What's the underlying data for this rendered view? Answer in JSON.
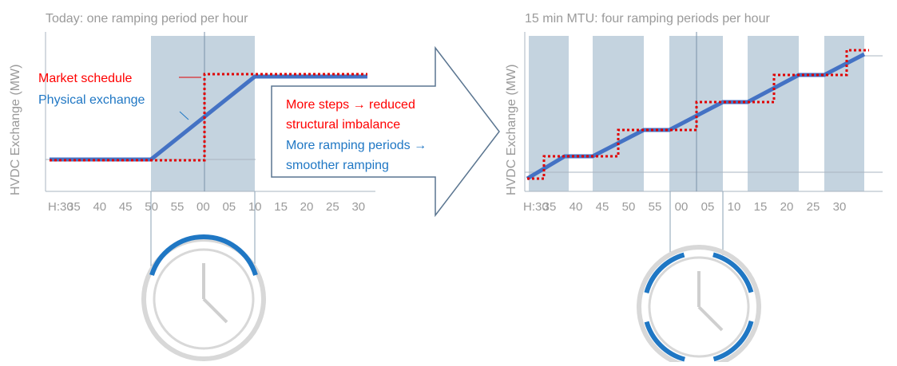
{
  "left": {
    "title": "Today: one ramping period per hour",
    "y_label": "HVDC Exchange (MW)",
    "x_ticks": [
      "H:30",
      "35",
      "40",
      "45",
      "50",
      "55",
      "00",
      "05",
      "10",
      "15",
      "20",
      "25",
      "30"
    ],
    "legend": {
      "market": "Market schedule",
      "physical": "Physical exchange"
    }
  },
  "arrow": {
    "lines": [
      "More steps → reduced",
      "structural imbalance",
      "More ramping periods →",
      "smoother ramping"
    ]
  },
  "right": {
    "title": "15 min MTU: four ramping periods per hour",
    "y_label": "HVDC Exchange (MW)",
    "x_ticks": [
      "H:30",
      "35",
      "40",
      "45",
      "50",
      "55",
      "00",
      "05",
      "10",
      "15",
      "20",
      "25",
      "30"
    ]
  }
}
